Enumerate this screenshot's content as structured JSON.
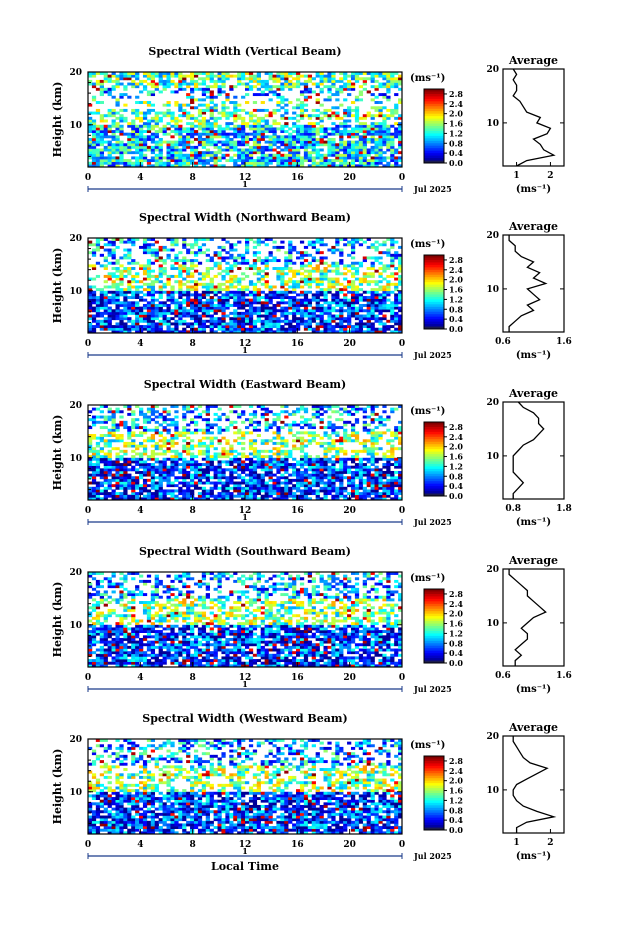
{
  "chart_data": [
    {
      "type": "heatmap",
      "title": "Spectral Width (Vertical Beam)",
      "ylabel": "Height (km)",
      "x_ticks": [
        "0",
        "4",
        "8",
        "12",
        "16",
        "20",
        "0"
      ],
      "y_ticks": [
        "20",
        "10"
      ],
      "xlim": [
        0,
        24
      ],
      "ylim": [
        2,
        20
      ],
      "date_label": "Jul 2025",
      "day_marker": "1",
      "colorbar": {
        "units": "(ms⁻¹)",
        "ticks": [
          "2.8",
          "2.4",
          "2.0",
          "1.6",
          "1.2",
          "0.8",
          "0.4",
          "0.0"
        ],
        "range": [
          0.0,
          3.0
        ]
      },
      "average": {
        "title": "Average",
        "xlabel": "(ms⁻¹)",
        "x_ticks": [
          "1",
          "2"
        ],
        "xlim": [
          0.6,
          2.4
        ],
        "y_ticks": [
          "20",
          "10"
        ],
        "heights": [
          2,
          3,
          4,
          5,
          6,
          7,
          8,
          9,
          10,
          11,
          12,
          13,
          14,
          15,
          16,
          17,
          18,
          19,
          20
        ],
        "values": [
          1.0,
          1.3,
          2.1,
          1.8,
          1.7,
          1.5,
          1.9,
          2.0,
          1.6,
          1.7,
          1.3,
          1.2,
          1.1,
          0.9,
          1.0,
          1.0,
          0.9,
          1.0,
          0.9
        ]
      }
    },
    {
      "type": "heatmap",
      "title": "Spectral Width (Northward Beam)",
      "ylabel": "Height (km)",
      "x_ticks": [
        "0",
        "4",
        "8",
        "12",
        "16",
        "20",
        "0"
      ],
      "y_ticks": [
        "20",
        "10"
      ],
      "xlim": [
        0,
        24
      ],
      "ylim": [
        2,
        20
      ],
      "date_label": "Jul 2025",
      "day_marker": "1",
      "colorbar": {
        "units": "(ms⁻¹)",
        "ticks": [
          "2.8",
          "2.4",
          "2.0",
          "1.6",
          "1.2",
          "0.8",
          "0.4",
          "0.0"
        ],
        "range": [
          0.0,
          3.0
        ]
      },
      "average": {
        "title": "Average",
        "xlabel": "(ms⁻¹)",
        "x_ticks": [
          "0.6",
          "1.6"
        ],
        "xlim": [
          0.6,
          1.6
        ],
        "y_ticks": [
          "20",
          "10"
        ],
        "heights": [
          2,
          3,
          4,
          5,
          6,
          7,
          8,
          9,
          10,
          11,
          12,
          13,
          14,
          15,
          16,
          17,
          18,
          19,
          20
        ],
        "values": [
          0.7,
          0.7,
          0.8,
          0.9,
          1.1,
          1.0,
          1.2,
          1.1,
          1.0,
          1.3,
          1.1,
          1.2,
          1.0,
          1.1,
          0.9,
          0.8,
          0.8,
          0.7,
          0.7
        ]
      }
    },
    {
      "type": "heatmap",
      "title": "Spectral Width (Eastward Beam)",
      "ylabel": "Height (km)",
      "x_ticks": [
        "0",
        "4",
        "8",
        "12",
        "16",
        "20",
        "0"
      ],
      "y_ticks": [
        "20",
        "10"
      ],
      "xlim": [
        0,
        24
      ],
      "ylim": [
        2,
        20
      ],
      "date_label": "Jul 2025",
      "day_marker": "1",
      "colorbar": {
        "units": "(ms⁻¹)",
        "ticks": [
          "2.8",
          "2.4",
          "2.0",
          "1.6",
          "1.2",
          "0.8",
          "0.4",
          "0.0"
        ],
        "range": [
          0.0,
          3.0
        ]
      },
      "average": {
        "title": "Average",
        "xlabel": "(ms⁻¹)",
        "x_ticks": [
          "0.8",
          "1.8"
        ],
        "xlim": [
          0.6,
          1.8
        ],
        "y_ticks": [
          "20",
          "10"
        ],
        "heights": [
          2,
          3,
          4,
          5,
          6,
          7,
          8,
          9,
          10,
          11,
          12,
          13,
          14,
          15,
          16,
          17,
          18,
          19,
          20
        ],
        "values": [
          0.8,
          0.8,
          0.9,
          1.0,
          0.9,
          0.8,
          0.8,
          0.8,
          0.8,
          0.9,
          1.0,
          1.2,
          1.3,
          1.4,
          1.3,
          1.3,
          1.2,
          1.0,
          0.9
        ]
      }
    },
    {
      "type": "heatmap",
      "title": "Spectral Width (Southward Beam)",
      "ylabel": "Height (km)",
      "x_ticks": [
        "0",
        "4",
        "8",
        "12",
        "16",
        "20",
        "0"
      ],
      "y_ticks": [
        "20",
        "10"
      ],
      "xlim": [
        0,
        24
      ],
      "ylim": [
        2,
        20
      ],
      "date_label": "Jul 2025",
      "day_marker": "1",
      "colorbar": {
        "units": "(ms⁻¹)",
        "ticks": [
          "2.8",
          "2.4",
          "2.0",
          "1.6",
          "1.2",
          "0.8",
          "0.4",
          "0.0"
        ],
        "range": [
          0.0,
          3.0
        ]
      },
      "average": {
        "title": "Average",
        "xlabel": "(ms⁻¹)",
        "x_ticks": [
          "0.6",
          "1.6"
        ],
        "xlim": [
          0.6,
          1.6
        ],
        "y_ticks": [
          "20",
          "10"
        ],
        "heights": [
          2,
          3,
          4,
          5,
          6,
          7,
          8,
          9,
          10,
          11,
          12,
          13,
          14,
          15,
          16,
          17,
          18,
          19,
          20
        ],
        "values": [
          0.8,
          0.8,
          0.9,
          0.8,
          0.9,
          1.0,
          1.0,
          0.9,
          1.0,
          1.1,
          1.3,
          1.2,
          1.1,
          1.0,
          1.0,
          0.9,
          0.8,
          0.7,
          0.7
        ]
      }
    },
    {
      "type": "heatmap",
      "title": "Spectral Width (Westward Beam)",
      "ylabel": "Height (km)",
      "xlabel": "Local Time",
      "x_ticks": [
        "0",
        "4",
        "8",
        "12",
        "16",
        "20",
        "0"
      ],
      "y_ticks": [
        "20",
        "10"
      ],
      "xlim": [
        0,
        24
      ],
      "ylim": [
        2,
        20
      ],
      "date_label": "Jul 2025",
      "day_marker": "1",
      "colorbar": {
        "units": "(ms⁻¹)",
        "ticks": [
          "2.8",
          "2.4",
          "2.0",
          "1.6",
          "1.2",
          "0.8",
          "0.4",
          "0.0"
        ],
        "range": [
          0.0,
          3.0
        ]
      },
      "average": {
        "title": "Average",
        "xlabel": "(ms⁻¹)",
        "x_ticks": [
          "1",
          "2"
        ],
        "xlim": [
          0.6,
          2.4
        ],
        "y_ticks": [
          "20",
          "10"
        ],
        "heights": [
          2,
          3,
          4,
          5,
          6,
          7,
          8,
          9,
          10,
          11,
          12,
          13,
          14,
          15,
          16,
          17,
          18,
          19,
          20
        ],
        "values": [
          1.0,
          1.0,
          1.3,
          2.1,
          1.6,
          1.2,
          1.0,
          0.9,
          0.9,
          1.0,
          1.3,
          1.6,
          1.9,
          1.4,
          1.2,
          1.1,
          1.0,
          0.9,
          0.9
        ]
      }
    }
  ]
}
